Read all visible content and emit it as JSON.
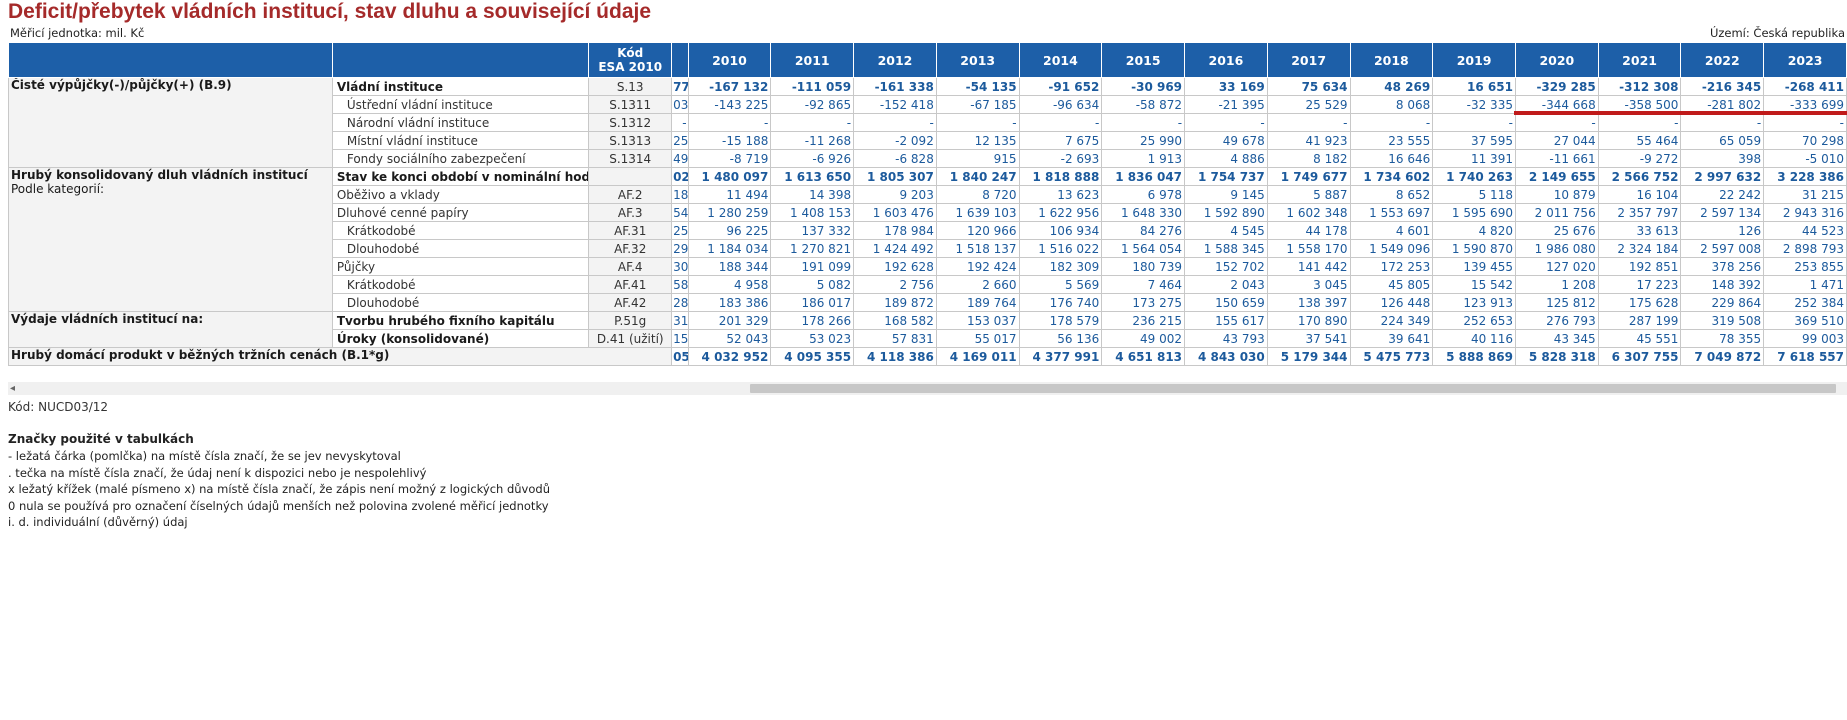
{
  "header": {
    "title": "Deficit/přebytek vládních institucí, stav dluhu a související údaje",
    "unit": "Měřicí jednotka: mil. Kč",
    "territory": "Území: Česká republika"
  },
  "table": {
    "code_header_line1": "Kód",
    "code_header_line2": "ESA 2010",
    "years": [
      "2010",
      "2011",
      "2012",
      "2013",
      "2014",
      "2015",
      "2016",
      "2017",
      "2018",
      "2019",
      "2020",
      "2021",
      "2022",
      "2023"
    ],
    "groups": {
      "net_lending": "Čisté výpůjčky(-)/půjčky(+) (B.9)",
      "gross_debt": "Hrubý konsolidovaný dluh vládních institucí",
      "gross_debt_sub": "Podle kategorií:",
      "expenditure": "Výdaje vládních institucí na:",
      "gdp": "Hrubý domácí produkt v běžných tržních cenách (B.1*g)"
    },
    "rows": [
      {
        "label": "Vládní instituce",
        "code": "S.13",
        "frag": "77",
        "values": [
          "-167 132",
          "-111 059",
          "-161 338",
          "-54 135",
          "-91 652",
          "-30 969",
          "33 169",
          "75 634",
          "48 269",
          "16 651",
          "-329 285",
          "-312 308",
          "-216 345",
          "-268 411"
        ]
      },
      {
        "label": "Ústřední vládní instituce",
        "code": "S.1311",
        "frag": "03",
        "values": [
          "-143 225",
          "-92 865",
          "-152 418",
          "-67 185",
          "-96 634",
          "-58 872",
          "-21 395",
          "25 529",
          "8 068",
          "-32 335",
          "-344 668",
          "-358 500",
          "-281 802",
          "-333 699"
        ]
      },
      {
        "label": "Národní vládní instituce",
        "code": "S.1312",
        "frag": "-",
        "values": [
          "-",
          "-",
          "-",
          "-",
          "-",
          "-",
          "-",
          "-",
          "-",
          "-",
          "-",
          "-",
          "-",
          "-"
        ]
      },
      {
        "label": "Místní vládní instituce",
        "code": "S.1313",
        "frag": "25",
        "values": [
          "-15 188",
          "-11 268",
          "-2 092",
          "12 135",
          "7 675",
          "25 990",
          "49 678",
          "41 923",
          "23 555",
          "37 595",
          "27 044",
          "55 464",
          "65 059",
          "70 298"
        ]
      },
      {
        "label": "Fondy sociálního zabezpečení",
        "code": "S.1314",
        "frag": "49",
        "values": [
          "-8 719",
          "-6 926",
          "-6 828",
          "915",
          "-2 693",
          "1 913",
          "4 886",
          "8 182",
          "16 646",
          "11 391",
          "-11 661",
          "-9 272",
          "398",
          "-5 010"
        ]
      },
      {
        "label": "Stav ke konci období v nominální hodnotě",
        "code": "",
        "frag": "02",
        "values": [
          "1 480 097",
          "1 613 650",
          "1 805 307",
          "1 840 247",
          "1 818 888",
          "1 836 047",
          "1 754 737",
          "1 749 677",
          "1 734 602",
          "1 740 263",
          "2 149 655",
          "2 566 752",
          "2 997 632",
          "3 228 386"
        ]
      },
      {
        "label": "Oběživo a vklady",
        "code": "AF.2",
        "frag": "18",
        "values": [
          "11 494",
          "14 398",
          "9 203",
          "8 720",
          "13 623",
          "6 978",
          "9 145",
          "5 887",
          "8 652",
          "5 118",
          "10 879",
          "16 104",
          "22 242",
          "31 215"
        ]
      },
      {
        "label": "Dluhové cenné papíry",
        "code": "AF.3",
        "frag": "54",
        "values": [
          "1 280 259",
          "1 408 153",
          "1 603 476",
          "1 639 103",
          "1 622 956",
          "1 648 330",
          "1 592 890",
          "1 602 348",
          "1 553 697",
          "1 595 690",
          "2 011 756",
          "2 357 797",
          "2 597 134",
          "2 943 316"
        ]
      },
      {
        "label": "Krátkodobé",
        "code": "AF.31",
        "frag": "25",
        "values": [
          "96 225",
          "137 332",
          "178 984",
          "120 966",
          "106 934",
          "84 276",
          "4 545",
          "44 178",
          "4 601",
          "4 820",
          "25 676",
          "33 613",
          "126",
          "44 523"
        ]
      },
      {
        "label": "Dlouhodobé",
        "code": "AF.32",
        "frag": "29",
        "values": [
          "1 184 034",
          "1 270 821",
          "1 424 492",
          "1 518 137",
          "1 516 022",
          "1 564 054",
          "1 588 345",
          "1 558 170",
          "1 549 096",
          "1 590 870",
          "1 986 080",
          "2 324 184",
          "2 597 008",
          "2 898 793"
        ]
      },
      {
        "label": "Půjčky",
        "code": "AF.4",
        "frag": "30",
        "values": [
          "188 344",
          "191 099",
          "192 628",
          "192 424",
          "182 309",
          "180 739",
          "152 702",
          "141 442",
          "172 253",
          "139 455",
          "127 020",
          "192 851",
          "378 256",
          "253 855"
        ]
      },
      {
        "label": "Krátkodobé",
        "code": "AF.41",
        "frag": "58",
        "values": [
          "4 958",
          "5 082",
          "2 756",
          "2 660",
          "5 569",
          "7 464",
          "2 043",
          "3 045",
          "45 805",
          "15 542",
          "1 208",
          "17 223",
          "148 392",
          "1 471"
        ]
      },
      {
        "label": "Dlouhodobé",
        "code": "AF.42",
        "frag": "28",
        "values": [
          "183 386",
          "186 017",
          "189 872",
          "189 764",
          "176 740",
          "173 275",
          "150 659",
          "138 397",
          "126 448",
          "123 913",
          "125 812",
          "175 628",
          "229 864",
          "252 384"
        ]
      },
      {
        "label": "Tvorbu hrubého fixního kapitálu",
        "code": "P.51g",
        "frag": "31",
        "values": [
          "201 329",
          "178 266",
          "168 582",
          "153 037",
          "178 579",
          "236 215",
          "155 617",
          "170 890",
          "224 349",
          "252 653",
          "276 793",
          "287 199",
          "319 508",
          "369 510"
        ]
      },
      {
        "label": "Úroky (konsolidované)",
        "code": "D.41 (užití)",
        "frag": "15",
        "values": [
          "52 043",
          "53 023",
          "57 831",
          "55 017",
          "56 136",
          "49 002",
          "43 793",
          "37 541",
          "39 641",
          "40 116",
          "43 345",
          "45 551",
          "78 355",
          "99 003"
        ]
      },
      {
        "label": "",
        "code": "",
        "frag": "05",
        "values": [
          "4 032 952",
          "4 095 355",
          "4 118 386",
          "4 169 011",
          "4 377 991",
          "4 651 813",
          "4 843 030",
          "5 179 344",
          "5 475 773",
          "5 888 869",
          "5 828 318",
          "6 307 755",
          "7 049 872",
          "7 618 557"
        ]
      }
    ]
  },
  "footer": {
    "code": "Kód: NUCD03/12",
    "legend_title": "Značky použité v tabulkách",
    "legend_items": [
      "- ležatá čárka (pomlčka) na místě čísla značí, že se jev nevyskytoval",
      ". tečka na místě čísla značí, že údaj není k dispozici nebo je nespolehlivý",
      "x ležatý křížek (malé písmeno x) na místě čísla značí, že zápis není možný z logických důvodů",
      "0 nula se používá pro označení číselných údajů menších než polovina zvolené měřicí jednotky",
      "i. d. individuální (důvěrný) údaj"
    ]
  },
  "scrollbar": {
    "left_arrow": "◂"
  }
}
